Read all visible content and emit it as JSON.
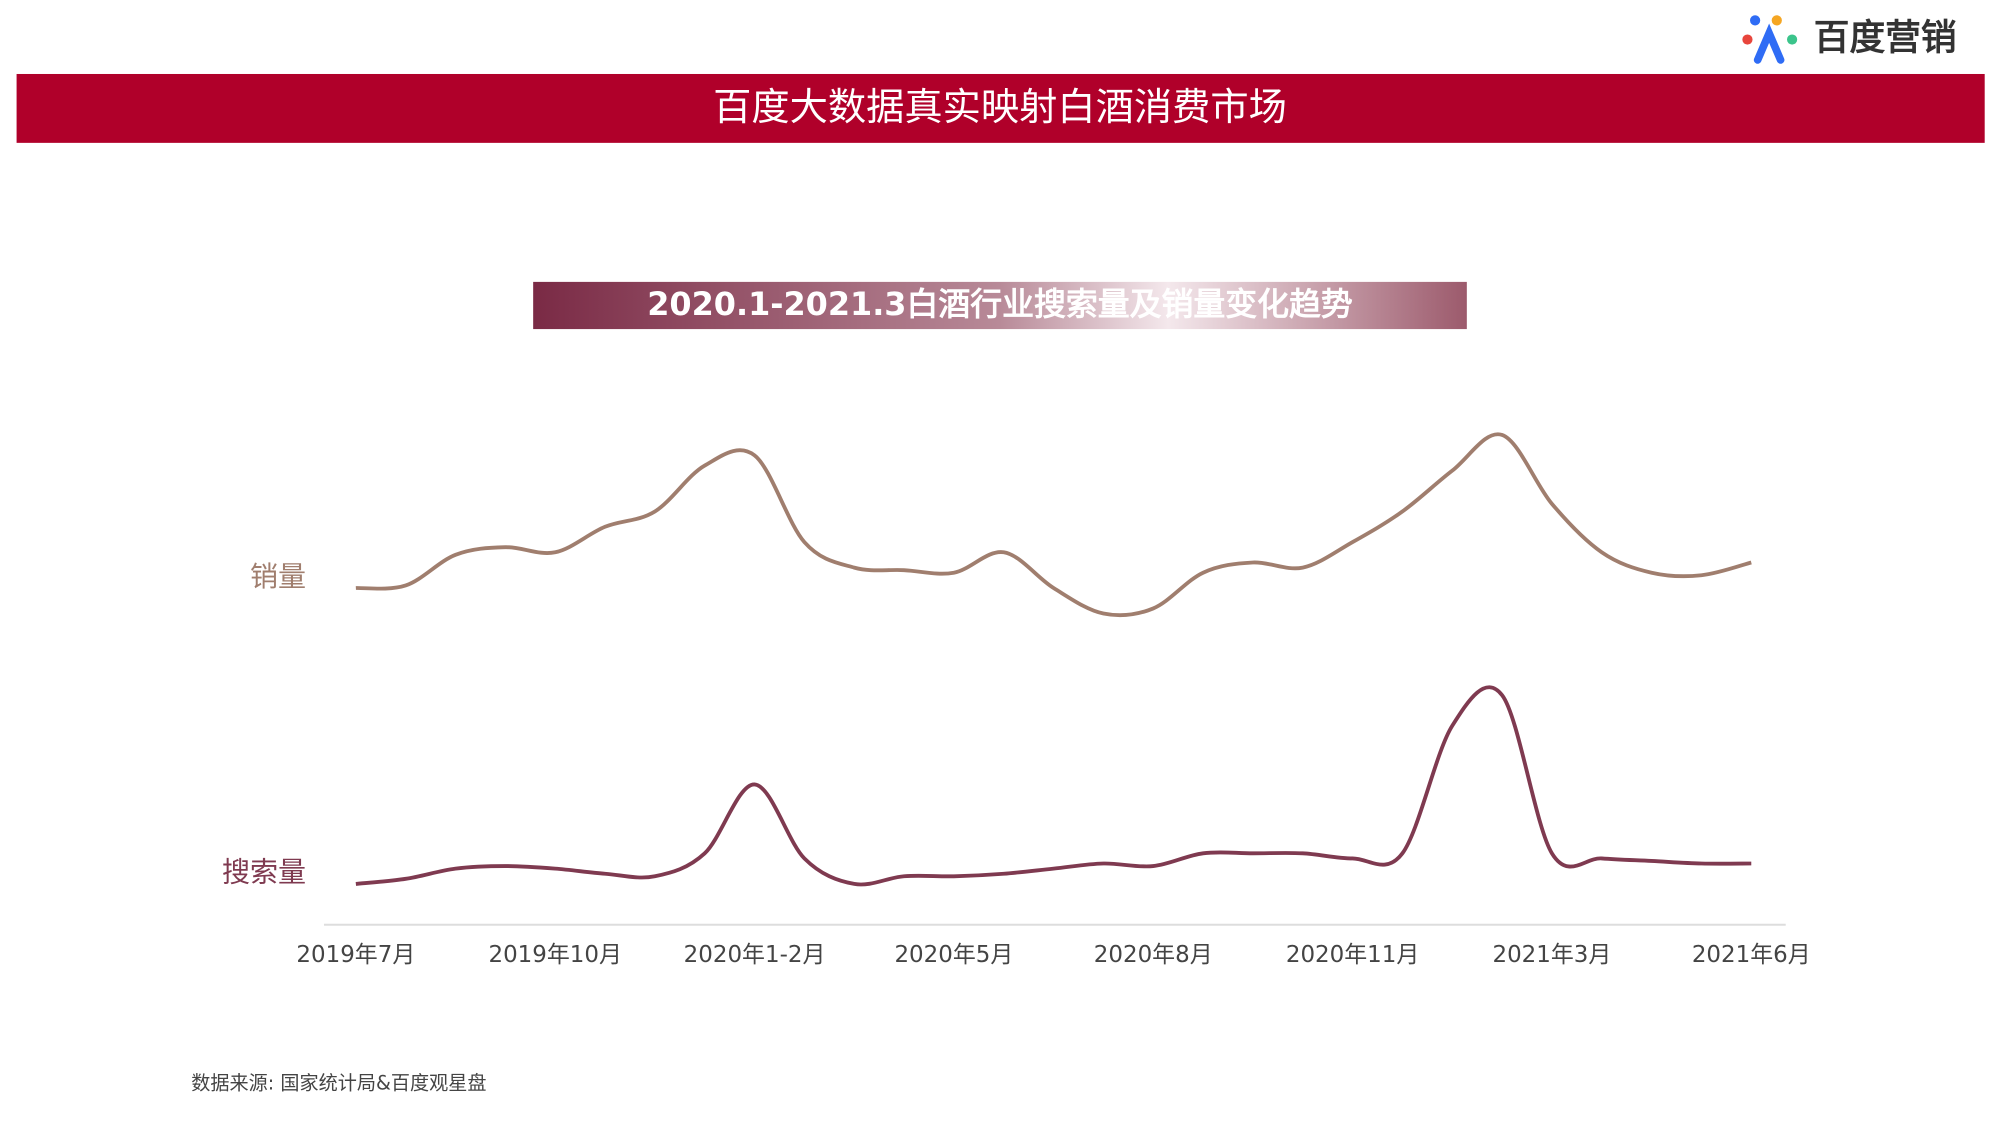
{
  "header": {
    "logo": "百度营销",
    "title": "百度大数据真实映射白酒消费市场"
  },
  "chart_data": {
    "type": "line",
    "title": "2020.1-2021.3白酒行业搜索量及销量变化趋势",
    "categories": [
      "2019年7月",
      null,
      null,
      null,
      "2019年10月",
      null,
      null,
      null,
      "2020年1-2月",
      null,
      null,
      null,
      "2020年5月",
      null,
      null,
      null,
      "2020年8月",
      null,
      null,
      null,
      "2020年11月",
      null,
      null,
      null,
      "2021年3月",
      null,
      null,
      null,
      "2021年6月"
    ],
    "ylim": [
      0,
      100
    ],
    "series": [
      {
        "name": "销量",
        "color": "#a07e6e",
        "values": [
          66,
          66.5,
          72.5,
          74,
          73,
          78,
          81,
          90,
          92,
          75,
          70,
          69.5,
          69,
          73,
          66,
          61,
          62,
          69,
          71,
          70,
          75,
          81,
          89,
          96,
          82.5,
          73,
          69,
          68.5,
          71
        ]
      },
      {
        "name": "搜索量",
        "color": "#7f3a50",
        "values": [
          8,
          9,
          11,
          11.5,
          11,
          10,
          9.5,
          14,
          27.5,
          13,
          8,
          9.5,
          9.5,
          10,
          11,
          12,
          11.5,
          14,
          14,
          14,
          13,
          14,
          39,
          45,
          14,
          13,
          12.5,
          12,
          12
        ]
      }
    ],
    "source": "数据来源: 国家统计局&百度观星盘"
  }
}
